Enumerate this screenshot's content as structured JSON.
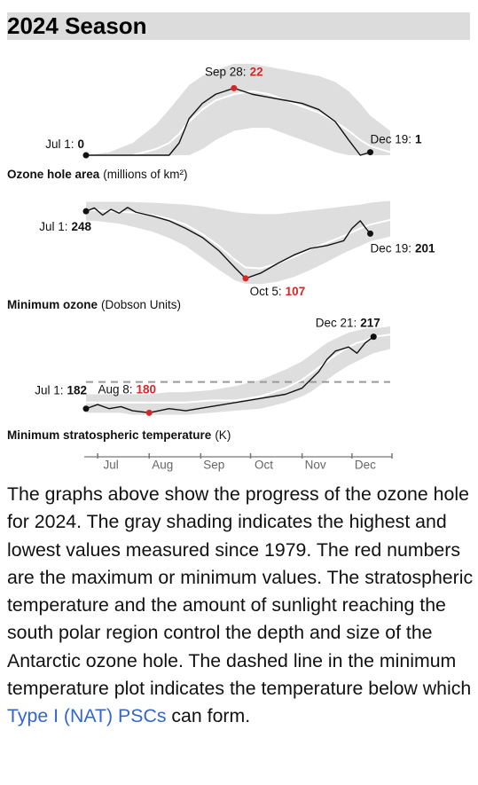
{
  "header": {
    "title": "2024 Season"
  },
  "chart_data": [
    {
      "type": "line",
      "title": "Ozone hole area",
      "unit": "(millions of km²)",
      "xlim": [
        0,
        183
      ],
      "ylim": [
        0,
        32
      ],
      "x": [
        0,
        14,
        28,
        42,
        50,
        56,
        62,
        70,
        78,
        89,
        100,
        110,
        120,
        130,
        140,
        150,
        158,
        165,
        171,
        183
      ],
      "band": {
        "color": "#dedede",
        "upper": [
          0,
          1,
          4,
          10,
          15,
          19,
          23,
          26,
          28,
          30,
          30,
          29,
          28,
          27,
          26,
          24,
          21,
          17,
          13,
          8
        ],
        "lower": [
          0,
          0,
          0,
          0,
          0,
          0,
          0,
          2,
          5,
          8,
          9,
          9,
          7,
          5,
          3,
          1,
          0,
          0,
          0,
          0
        ]
      },
      "series": [
        {
          "color": "#ffffff",
          "values": [
            0,
            0,
            0,
            2,
            4,
            7,
            11,
            15,
            18,
            20,
            21,
            20,
            18,
            16,
            14,
            11,
            8,
            5,
            3,
            1
          ]
        },
        {
          "color": "#111111",
          "values": [
            0,
            0,
            0,
            0,
            0,
            4,
            12,
            17,
            20,
            22,
            20,
            19,
            18,
            17,
            15,
            11,
            5,
            0,
            1,
            null
          ]
        }
      ],
      "annotations": [
        {
          "label": "Jul 1:",
          "x": 0,
          "color": "#111111"
        },
        {
          "label": "Sep 28:",
          "x": 89,
          "color": "#d62728"
        },
        {
          "label": "Dec 19:",
          "x": 171,
          "color": "#111111"
        }
      ]
    },
    {
      "type": "line",
      "title": "Minimum ozone",
      "unit": "(Dobson Units)",
      "xlim": [
        0,
        183
      ],
      "ylim": [
        90,
        280
      ],
      "x": [
        0,
        5,
        10,
        15,
        20,
        25,
        30,
        40,
        50,
        60,
        70,
        80,
        90,
        96,
        105,
        115,
        125,
        135,
        145,
        155,
        160,
        165,
        168,
        171,
        183
      ],
      "band": {
        "color": "#dedede",
        "upper": [
          268,
          268,
          268,
          268,
          268,
          268,
          267,
          266,
          264,
          262,
          258,
          252,
          246,
          244,
          242,
          242,
          246,
          250,
          254,
          258,
          260,
          262,
          264,
          266,
          270
        ],
        "lower": [
          228,
          228,
          226,
          224,
          222,
          218,
          214,
          205,
          192,
          175,
          150,
          125,
          102,
          96,
          95,
          100,
          110,
          125,
          142,
          160,
          168,
          175,
          180,
          185,
          195
        ]
      },
      "series": [
        {
          "color": "#ffffff",
          "values": [
            250,
            250,
            249,
            248,
            247,
            246,
            245,
            240,
            232,
            220,
            200,
            175,
            145,
            130,
            128,
            138,
            152,
            168,
            182,
            196,
            204,
            212,
            216,
            220,
            230
          ]
        },
        {
          "color": "#111111",
          "values": [
            248,
            255,
            240,
            252,
            244,
            256,
            246,
            238,
            228,
            212,
            193,
            165,
            128,
            107,
            118,
            138,
            156,
            170,
            176,
            186,
            212,
            228,
            214,
            201,
            null
          ]
        }
      ],
      "annotations": [
        {
          "label": "Jul 1:",
          "x": 0,
          "color": "#111111"
        },
        {
          "label": "Oct 5:",
          "x": 96,
          "color": "#d62728"
        },
        {
          "label": "Dec 19:",
          "x": 171,
          "color": "#111111"
        }
      ]
    },
    {
      "type": "line",
      "title": "Minimum stratospheric temperature",
      "unit": "(K)",
      "xlim": [
        0,
        183
      ],
      "ylim": [
        178,
        222
      ],
      "xticks": [
        {
          "value": 15,
          "label": "Jul"
        },
        {
          "value": 46,
          "label": "Aug"
        },
        {
          "value": 77,
          "label": "Sep"
        },
        {
          "value": 107,
          "label": "Oct"
        },
        {
          "value": 138,
          "label": "Nov"
        },
        {
          "value": 168,
          "label": "Dec"
        }
      ],
      "x": [
        0,
        7,
        14,
        21,
        28,
        38,
        50,
        60,
        75,
        90,
        105,
        120,
        130,
        135,
        140,
        145,
        150,
        158,
        163,
        168,
        173,
        183
      ],
      "threshold": {
        "value": 195,
        "color": "#9a9a9a"
      },
      "band": {
        "color": "#dedede",
        "upper": [
          189,
          189,
          189,
          189,
          189,
          189,
          190,
          190,
          191,
          193,
          196,
          201,
          205,
          208,
          211,
          214,
          216,
          219,
          220,
          221,
          221,
          222
        ],
        "lower": [
          180,
          180,
          180,
          180,
          179,
          179,
          179,
          179,
          180,
          181,
          182,
          185,
          188,
          190,
          193,
          196,
          199,
          203,
          205,
          207,
          209,
          211
        ]
      },
      "series": [
        {
          "color": "#ffffff",
          "values": [
            185,
            185,
            185,
            185,
            185,
            185,
            185,
            185,
            186,
            186,
            188,
            192,
            196,
            199,
            202,
            205,
            208,
            212,
            214,
            215,
            217,
            218
          ]
        },
        {
          "color": "#111111",
          "values": [
            182,
            184,
            182,
            183,
            181,
            180,
            182,
            181,
            183,
            185,
            187,
            189,
            192,
            196,
            200,
            206,
            210,
            212,
            209,
            214,
            217,
            null
          ]
        }
      ],
      "annotations": [
        {
          "label": "Jul 1:",
          "x": 0,
          "color": "#111111"
        },
        {
          "label": "Aug 8:",
          "x": 38,
          "color": "#d62728"
        },
        {
          "label": "Dec 21:",
          "x": 173,
          "color": "#111111"
        }
      ]
    }
  ],
  "caption": {
    "text": "The graphs above show the progress of the ozone hole for 2024. The gray shading indicates the highest and lowest values measured since 1979. The red numbers are the maximum or minimum values. The stratospheric temperature and the amount of sunlight reaching the south polar region control the depth and size of the Antarctic ozone hole. The dashed line in the minimum temperature plot indicates the temperature below which",
    "link": "Type I (NAT) PSCs",
    "text_after": "can form."
  }
}
